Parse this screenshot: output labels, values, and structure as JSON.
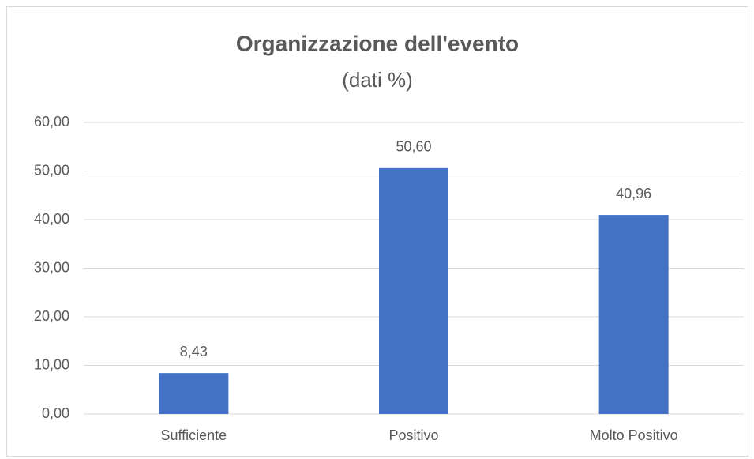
{
  "chart_data": {
    "type": "bar",
    "title": "Organizzazione dell'evento",
    "subtitle": "(dati %)",
    "categories": [
      "Sufficiente",
      "Positivo",
      "Molto Positivo"
    ],
    "values": [
      8.43,
      50.6,
      40.96
    ],
    "value_labels": [
      "8,43",
      "50,60",
      "40,96"
    ],
    "color": "#4472c4",
    "ylim": [
      0,
      60
    ],
    "yticks": [
      {
        "value": 0,
        "label": "0,00"
      },
      {
        "value": 10,
        "label": "10,00"
      },
      {
        "value": 20,
        "label": "20,00"
      },
      {
        "value": 30,
        "label": "30,00"
      },
      {
        "value": 40,
        "label": "40,00"
      },
      {
        "value": 50,
        "label": "50,00"
      },
      {
        "value": 60,
        "label": "60,00"
      }
    ],
    "grid": true
  }
}
